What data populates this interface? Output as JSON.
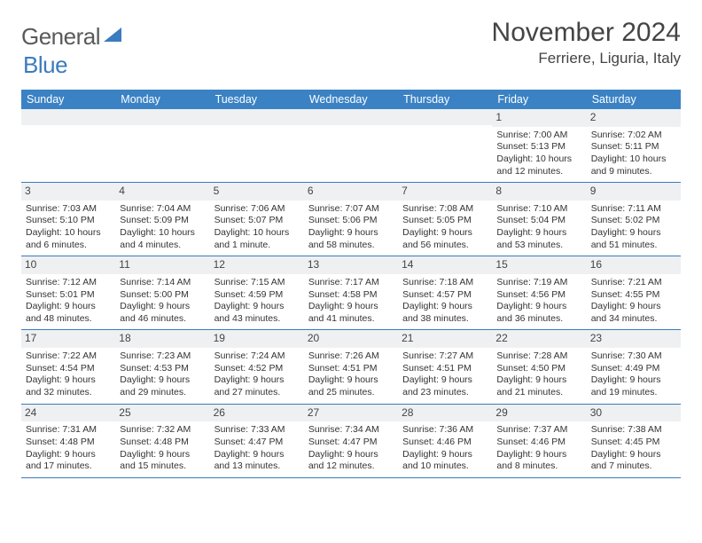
{
  "brand": {
    "text_a": "General",
    "text_b": "Blue"
  },
  "title": "November 2024",
  "location": "Ferriere, Liguria, Italy",
  "colors": {
    "header_bg": "#3b82c4",
    "border": "#3b7bbf",
    "daybar_bg": "#eef0f2",
    "text": "#333333"
  },
  "day_names": [
    "Sunday",
    "Monday",
    "Tuesday",
    "Wednesday",
    "Thursday",
    "Friday",
    "Saturday"
  ],
  "weeks": [
    [
      {
        "n": "",
        "sunrise": "",
        "sunset": "",
        "daylight": ""
      },
      {
        "n": "",
        "sunrise": "",
        "sunset": "",
        "daylight": ""
      },
      {
        "n": "",
        "sunrise": "",
        "sunset": "",
        "daylight": ""
      },
      {
        "n": "",
        "sunrise": "",
        "sunset": "",
        "daylight": ""
      },
      {
        "n": "",
        "sunrise": "",
        "sunset": "",
        "daylight": ""
      },
      {
        "n": "1",
        "sunrise": "Sunrise: 7:00 AM",
        "sunset": "Sunset: 5:13 PM",
        "daylight": "Daylight: 10 hours and 12 minutes."
      },
      {
        "n": "2",
        "sunrise": "Sunrise: 7:02 AM",
        "sunset": "Sunset: 5:11 PM",
        "daylight": "Daylight: 10 hours and 9 minutes."
      }
    ],
    [
      {
        "n": "3",
        "sunrise": "Sunrise: 7:03 AM",
        "sunset": "Sunset: 5:10 PM",
        "daylight": "Daylight: 10 hours and 6 minutes."
      },
      {
        "n": "4",
        "sunrise": "Sunrise: 7:04 AM",
        "sunset": "Sunset: 5:09 PM",
        "daylight": "Daylight: 10 hours and 4 minutes."
      },
      {
        "n": "5",
        "sunrise": "Sunrise: 7:06 AM",
        "sunset": "Sunset: 5:07 PM",
        "daylight": "Daylight: 10 hours and 1 minute."
      },
      {
        "n": "6",
        "sunrise": "Sunrise: 7:07 AM",
        "sunset": "Sunset: 5:06 PM",
        "daylight": "Daylight: 9 hours and 58 minutes."
      },
      {
        "n": "7",
        "sunrise": "Sunrise: 7:08 AM",
        "sunset": "Sunset: 5:05 PM",
        "daylight": "Daylight: 9 hours and 56 minutes."
      },
      {
        "n": "8",
        "sunrise": "Sunrise: 7:10 AM",
        "sunset": "Sunset: 5:04 PM",
        "daylight": "Daylight: 9 hours and 53 minutes."
      },
      {
        "n": "9",
        "sunrise": "Sunrise: 7:11 AM",
        "sunset": "Sunset: 5:02 PM",
        "daylight": "Daylight: 9 hours and 51 minutes."
      }
    ],
    [
      {
        "n": "10",
        "sunrise": "Sunrise: 7:12 AM",
        "sunset": "Sunset: 5:01 PM",
        "daylight": "Daylight: 9 hours and 48 minutes."
      },
      {
        "n": "11",
        "sunrise": "Sunrise: 7:14 AM",
        "sunset": "Sunset: 5:00 PM",
        "daylight": "Daylight: 9 hours and 46 minutes."
      },
      {
        "n": "12",
        "sunrise": "Sunrise: 7:15 AM",
        "sunset": "Sunset: 4:59 PM",
        "daylight": "Daylight: 9 hours and 43 minutes."
      },
      {
        "n": "13",
        "sunrise": "Sunrise: 7:17 AM",
        "sunset": "Sunset: 4:58 PM",
        "daylight": "Daylight: 9 hours and 41 minutes."
      },
      {
        "n": "14",
        "sunrise": "Sunrise: 7:18 AM",
        "sunset": "Sunset: 4:57 PM",
        "daylight": "Daylight: 9 hours and 38 minutes."
      },
      {
        "n": "15",
        "sunrise": "Sunrise: 7:19 AM",
        "sunset": "Sunset: 4:56 PM",
        "daylight": "Daylight: 9 hours and 36 minutes."
      },
      {
        "n": "16",
        "sunrise": "Sunrise: 7:21 AM",
        "sunset": "Sunset: 4:55 PM",
        "daylight": "Daylight: 9 hours and 34 minutes."
      }
    ],
    [
      {
        "n": "17",
        "sunrise": "Sunrise: 7:22 AM",
        "sunset": "Sunset: 4:54 PM",
        "daylight": "Daylight: 9 hours and 32 minutes."
      },
      {
        "n": "18",
        "sunrise": "Sunrise: 7:23 AM",
        "sunset": "Sunset: 4:53 PM",
        "daylight": "Daylight: 9 hours and 29 minutes."
      },
      {
        "n": "19",
        "sunrise": "Sunrise: 7:24 AM",
        "sunset": "Sunset: 4:52 PM",
        "daylight": "Daylight: 9 hours and 27 minutes."
      },
      {
        "n": "20",
        "sunrise": "Sunrise: 7:26 AM",
        "sunset": "Sunset: 4:51 PM",
        "daylight": "Daylight: 9 hours and 25 minutes."
      },
      {
        "n": "21",
        "sunrise": "Sunrise: 7:27 AM",
        "sunset": "Sunset: 4:51 PM",
        "daylight": "Daylight: 9 hours and 23 minutes."
      },
      {
        "n": "22",
        "sunrise": "Sunrise: 7:28 AM",
        "sunset": "Sunset: 4:50 PM",
        "daylight": "Daylight: 9 hours and 21 minutes."
      },
      {
        "n": "23",
        "sunrise": "Sunrise: 7:30 AM",
        "sunset": "Sunset: 4:49 PM",
        "daylight": "Daylight: 9 hours and 19 minutes."
      }
    ],
    [
      {
        "n": "24",
        "sunrise": "Sunrise: 7:31 AM",
        "sunset": "Sunset: 4:48 PM",
        "daylight": "Daylight: 9 hours and 17 minutes."
      },
      {
        "n": "25",
        "sunrise": "Sunrise: 7:32 AM",
        "sunset": "Sunset: 4:48 PM",
        "daylight": "Daylight: 9 hours and 15 minutes."
      },
      {
        "n": "26",
        "sunrise": "Sunrise: 7:33 AM",
        "sunset": "Sunset: 4:47 PM",
        "daylight": "Daylight: 9 hours and 13 minutes."
      },
      {
        "n": "27",
        "sunrise": "Sunrise: 7:34 AM",
        "sunset": "Sunset: 4:47 PM",
        "daylight": "Daylight: 9 hours and 12 minutes."
      },
      {
        "n": "28",
        "sunrise": "Sunrise: 7:36 AM",
        "sunset": "Sunset: 4:46 PM",
        "daylight": "Daylight: 9 hours and 10 minutes."
      },
      {
        "n": "29",
        "sunrise": "Sunrise: 7:37 AM",
        "sunset": "Sunset: 4:46 PM",
        "daylight": "Daylight: 9 hours and 8 minutes."
      },
      {
        "n": "30",
        "sunrise": "Sunrise: 7:38 AM",
        "sunset": "Sunset: 4:45 PM",
        "daylight": "Daylight: 9 hours and 7 minutes."
      }
    ]
  ]
}
